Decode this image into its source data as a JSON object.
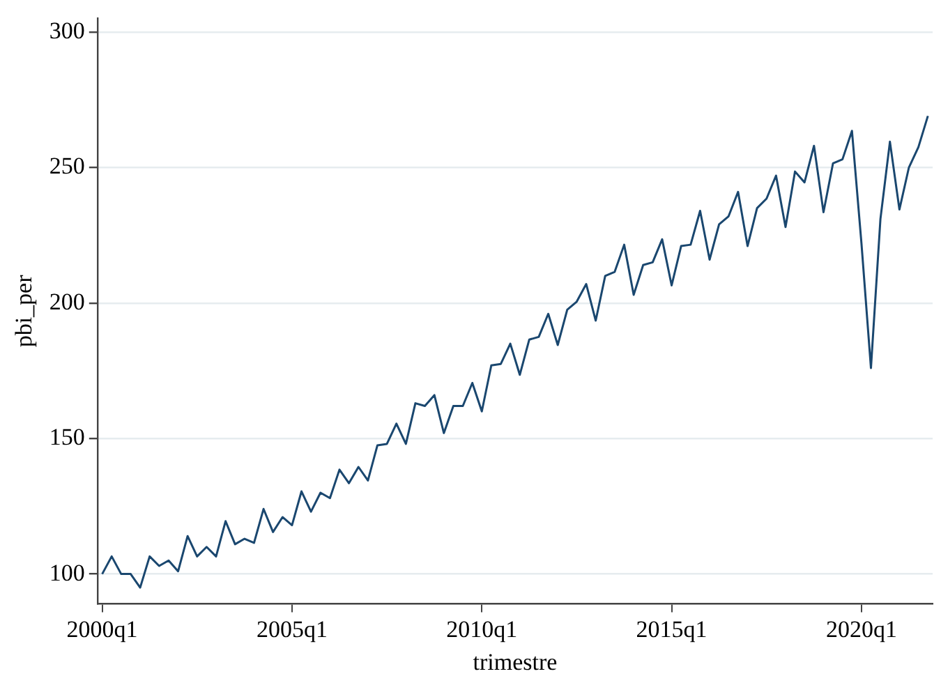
{
  "chart_data": {
    "type": "line",
    "xlabel": "trimestre",
    "ylabel": "pbi_per",
    "categories": [
      "2000q1",
      null,
      null,
      null,
      null,
      null,
      null,
      null,
      null,
      null,
      null,
      null,
      null,
      null,
      null,
      null,
      null,
      null,
      null,
      null,
      "2005q1",
      null,
      null,
      null,
      null,
      null,
      null,
      null,
      null,
      null,
      null,
      null,
      null,
      null,
      null,
      null,
      null,
      null,
      null,
      null,
      "2010q1",
      null,
      null,
      null,
      null,
      null,
      null,
      null,
      null,
      null,
      null,
      null,
      null,
      null,
      null,
      null,
      null,
      null,
      null,
      null,
      "2015q1",
      null,
      null,
      null,
      null,
      null,
      null,
      null,
      null,
      null,
      null,
      null,
      null,
      null,
      null,
      null,
      null,
      null,
      null,
      null,
      "2020q1",
      null,
      null,
      null,
      null,
      null,
      null,
      null
    ],
    "series": [
      {
        "color": "#1a476f",
        "values": [
          100,
          106.5,
          100,
          100,
          95,
          106.5,
          103,
          105,
          101,
          114,
          106.5,
          110,
          106.5,
          119.5,
          111,
          113,
          111.5,
          124,
          115.5,
          121,
          118,
          130.5,
          123,
          130,
          128,
          138.5,
          133.5,
          139.5,
          134.5,
          147.5,
          148,
          155.5,
          148,
          163,
          162,
          166,
          152,
          162,
          162,
          170.5,
          160,
          177,
          177.5,
          185,
          173.5,
          186.5,
          187.5,
          196,
          184.5,
          197.5,
          200.5,
          207,
          193.5,
          210,
          211.5,
          221.5,
          203,
          214,
          215,
          223.5,
          206.5,
          221,
          221.5,
          234,
          216,
          229,
          232,
          241,
          221,
          235,
          238.5,
          247,
          228,
          248.5,
          244.5,
          258,
          233.5,
          251.5,
          253,
          263.5,
          222,
          176,
          231,
          259.5,
          234.5,
          250,
          257.5,
          269
        ]
      }
    ],
    "ylim": [
      89,
      305
    ],
    "yticks": [
      100,
      150,
      200,
      250,
      300
    ],
    "grid": "y",
    "legend": false,
    "marker": "none",
    "line_style": "solid"
  }
}
